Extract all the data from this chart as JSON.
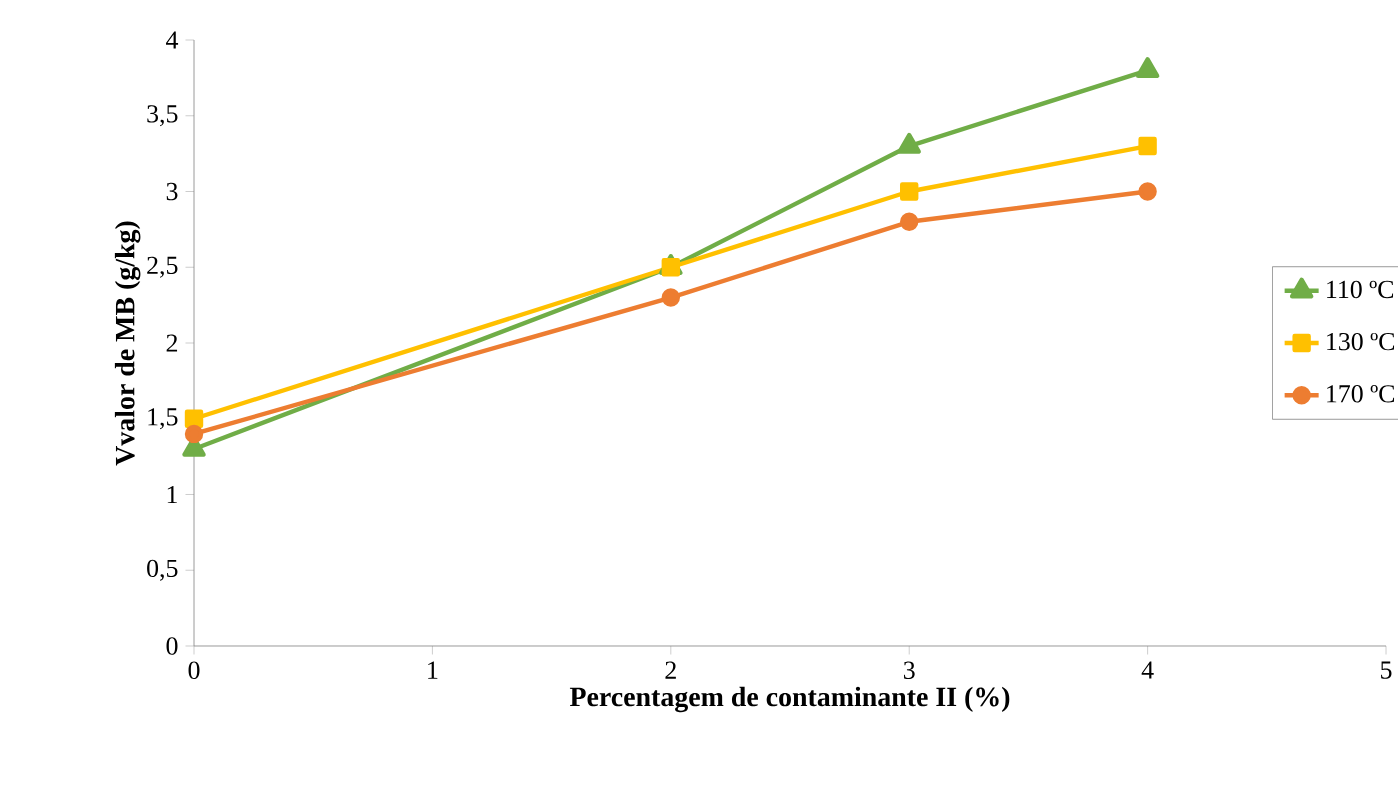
{
  "chart_data": {
    "type": "line",
    "xlabel": "Percentagem de contaminante II (%)",
    "ylabel": "Vvalor de MB  (g/kg)",
    "x": [
      0,
      2,
      3,
      4
    ],
    "series": [
      {
        "name": "110 ºC",
        "color": "#70ad47",
        "marker": "triangle",
        "values": [
          1.3,
          2.5,
          3.3,
          3.8
        ]
      },
      {
        "name": "130 ºC",
        "color": "#ffc000",
        "marker": "square",
        "values": [
          1.5,
          2.5,
          3.0,
          3.3
        ]
      },
      {
        "name": "170 ºC",
        "color": "#ed7d31",
        "marker": "circle",
        "values": [
          1.4,
          2.3,
          2.8,
          3.0
        ]
      }
    ],
    "xlim": [
      0,
      5
    ],
    "xticks": [
      0,
      1,
      2,
      3,
      4,
      5
    ],
    "ylim": [
      0,
      4
    ],
    "yticks": [
      0,
      {
        "value": 0.5,
        "label": "0,5"
      },
      1,
      {
        "value": 1.5,
        "label": "1,5"
      },
      2,
      {
        "value": 2.5,
        "label": "2,5"
      },
      3,
      {
        "value": 3.5,
        "label": "3,5"
      },
      4
    ],
    "grid": false,
    "legend": "right",
    "line_style": "solid"
  }
}
